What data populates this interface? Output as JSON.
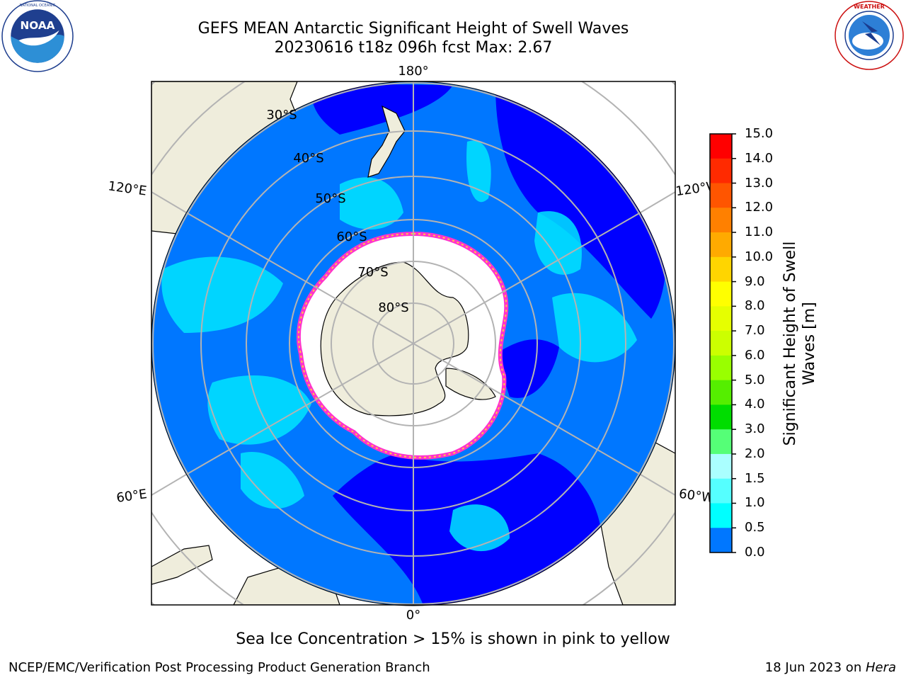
{
  "header": {
    "title_line1": "GEFS MEAN Antarctic Significant Height of Swell Waves",
    "title_line2": "20230616 t18z 096h fcst   Max: 2.67"
  },
  "logos": {
    "left": "noaa-logo",
    "right": "nws-logo",
    "left_text": "NOAA",
    "left_ring_text": "NATIONAL OCEANIC AND ATMOSPHERIC ADMINISTRATION · U.S. DEPARTMENT OF COMMERCE",
    "right_ring_text": "NATIONAL WEATHER SERVICE"
  },
  "map": {
    "projection": "south-polar-stereographic",
    "longitude_labels": {
      "top": "180°",
      "left_upper": "120°E",
      "right_upper": "120°W",
      "left_lower": "60°E",
      "right_lower": "60°W",
      "bottom": "0°"
    },
    "latitude_labels": [
      "30°S",
      "40°S",
      "50°S",
      "60°S",
      "70°S",
      "80°S"
    ],
    "colors": {
      "ocean_deep": "#0000ff",
      "ocean_mid": "#0077ff",
      "ocean_light": "#00e5ff",
      "land": "#efeddc",
      "ice": "#ffffff",
      "ice_edge_pink": "#ff33cc",
      "ice_edge_yellow": "#ffcc44",
      "grid": "#b3b3b3"
    }
  },
  "colorbar": {
    "title": "Significant Height of Swell Waves [m]",
    "title_line1": "Significant Height of Swell",
    "title_line2": "Waves [m]",
    "ticks": [
      "15.0",
      "14.0",
      "13.0",
      "12.0",
      "11.0",
      "10.0",
      "9.0",
      "8.0",
      "7.0",
      "6.0",
      "5.0",
      "4.0",
      "3.0",
      "2.0",
      "1.5",
      "1.0",
      "0.5",
      "0.0"
    ],
    "colors_top_to_bottom": [
      "#ff0000",
      "#ff2a00",
      "#ff5500",
      "#ff8000",
      "#ffaa00",
      "#ffd500",
      "#ffff00",
      "#e6ff00",
      "#ccff00",
      "#99ff00",
      "#55ee00",
      "#00dd00",
      "#55ff77",
      "#aaffff",
      "#55ffff",
      "#00ffff",
      "#0077ff",
      "#0000ff"
    ]
  },
  "notes": {
    "sea_ice": "Sea Ice Concentration > 15% is shown in pink to yellow"
  },
  "footer": {
    "left": "NCEP/EMC/Verification Post Processing Product Generation Branch",
    "right_date": "18 Jun 2023 on ",
    "right_host": "Hera"
  }
}
